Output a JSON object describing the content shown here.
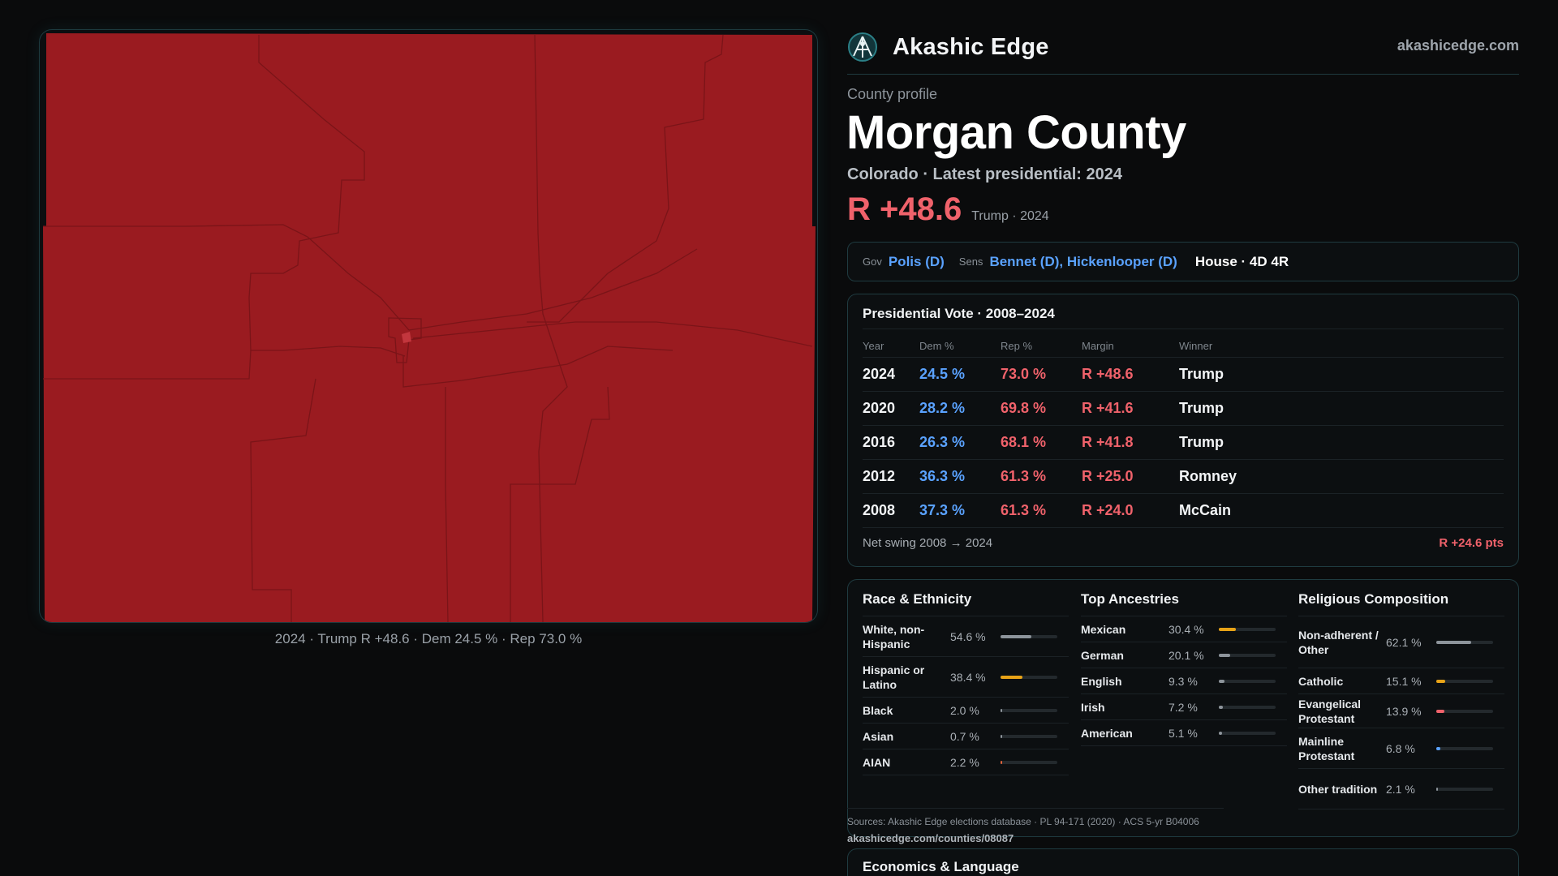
{
  "brand": {
    "name": "Akashic Edge",
    "url": "akashicedge.com"
  },
  "profile": {
    "kicker": "County profile",
    "title": "Morgan County",
    "subtitle": "Colorado · Latest presidential: 2024",
    "margin": "R +48.6",
    "margin_note": "Trump · 2024"
  },
  "officials": {
    "gov_label": "Gov",
    "gov": "Polis (D)",
    "sens_label": "Sens",
    "sens": "Bennet (D), Hickenlooper (D)",
    "house": "House · 4D 4R"
  },
  "map": {
    "caption": "2024 · Trump R +48.6 · Dem 24.5 % · Rep 73.0 %",
    "fill_color": "#9a1b20",
    "boundary_color": "#7a1418"
  },
  "presidential": {
    "title": "Presidential Vote · 2008–2024",
    "columns": [
      "Year",
      "Dem %",
      "Rep %",
      "Margin",
      "Winner"
    ],
    "rows": [
      [
        "2024",
        "24.5 %",
        "73.0 %",
        "R +48.6",
        "Trump"
      ],
      [
        "2020",
        "28.2 %",
        "69.8 %",
        "R +41.6",
        "Trump"
      ],
      [
        "2016",
        "26.3 %",
        "68.1 %",
        "R +41.8",
        "Trump"
      ],
      [
        "2012",
        "36.3 %",
        "61.3 %",
        "R +25.0",
        "Romney"
      ],
      [
        "2008",
        "37.3 %",
        "61.3 %",
        "R +24.0",
        "McCain"
      ]
    ],
    "swing_label": "Net swing 2008 → 2024",
    "swing_value": "R +24.6 pts"
  },
  "demographics": [
    {
      "title": "Race & Ethnicity",
      "rows": [
        {
          "label": "White, non-Hispanic",
          "pct": "54.6 %",
          "value": 54.6,
          "color": "#8d949b"
        },
        {
          "label": "Hispanic or Latino",
          "pct": "38.4 %",
          "value": 38.4,
          "color": "#e8a317"
        },
        {
          "label": "Black",
          "pct": "2.0 %",
          "value": 2.0,
          "color": "#8d949b"
        },
        {
          "label": "Asian",
          "pct": "0.7 %",
          "value": 0.7,
          "color": "#8d949b"
        },
        {
          "label": "AIAN",
          "pct": "2.2 %",
          "value": 2.2,
          "color": "#e0623a"
        }
      ]
    },
    {
      "title": "Top Ancestries",
      "rows": [
        {
          "label": "Mexican",
          "pct": "30.4 %",
          "value": 30.4,
          "color": "#e8a317"
        },
        {
          "label": "German",
          "pct": "20.1 %",
          "value": 20.1,
          "color": "#8d949b"
        },
        {
          "label": "English",
          "pct": "9.3 %",
          "value": 9.3,
          "color": "#8d949b"
        },
        {
          "label": "Irish",
          "pct": "7.2 %",
          "value": 7.2,
          "color": "#8d949b"
        },
        {
          "label": "American",
          "pct": "5.1 %",
          "value": 5.1,
          "color": "#8d949b"
        }
      ]
    },
    {
      "title": "Religious Composition",
      "rows": [
        {
          "label": "Non-adherent / Other",
          "pct": "62.1 %",
          "value": 62.1,
          "color": "#8d949b"
        },
        {
          "label": "Catholic",
          "pct": "15.1 %",
          "value": 15.1,
          "color": "#e8a317"
        },
        {
          "label": "Evangelical Protestant",
          "pct": "13.9 %",
          "value": 13.9,
          "color": "#f0626b"
        },
        {
          "label": "Mainline Protestant",
          "pct": "6.8 %",
          "value": 6.8,
          "color": "#5aa2ff"
        },
        {
          "label": "Other tradition",
          "pct": "2.1 %",
          "value": 2.1,
          "color": "#8d949b"
        }
      ]
    }
  ],
  "sources": {
    "text": "Sources: Akashic Edge elections database · PL 94-171 (2020) · ACS 5-yr B04006",
    "url": "akashicedge.com/counties/08087"
  },
  "economics": {
    "title": "Economics & Language"
  }
}
